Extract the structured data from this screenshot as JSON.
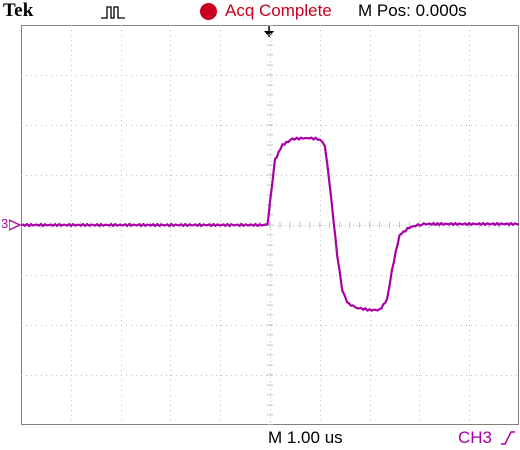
{
  "header": {
    "brand": "Tek",
    "trigger_icon": "pulse-trigger-icon",
    "acq_status": "Acq Complete",
    "acq_color": "#c8001e",
    "m_pos": "M Pos: 0.000s"
  },
  "footer": {
    "timebase": "M 1.00 us",
    "trigger_source": "CH3",
    "trigger_slope_icon": "rising-edge-icon"
  },
  "channel": {
    "marker_label": "3",
    "trace_color": "#a800a8"
  },
  "graticule": {
    "divisions_x": 10,
    "divisions_y": 8,
    "grid_color": "#c0c0c0"
  },
  "chart_data": {
    "type": "line",
    "xlabel": "",
    "ylabel": "",
    "xlim": [
      -5,
      5
    ],
    "ylim": [
      -4,
      4
    ],
    "grid": true,
    "series": [
      {
        "x": [
          -5.0,
          -0.05,
          0.0,
          0.1,
          0.25,
          0.45,
          0.75,
          1.0,
          1.1,
          1.2,
          1.35,
          1.45,
          1.55,
          1.7,
          2.0,
          2.2,
          2.35,
          2.45,
          2.6,
          2.8,
          3.05,
          3.4,
          5.0
        ],
        "values": [
          0.0,
          0.0,
          0.45,
          1.3,
          1.6,
          1.72,
          1.74,
          1.72,
          1.6,
          0.8,
          -0.6,
          -1.3,
          -1.55,
          -1.65,
          -1.7,
          -1.7,
          -1.5,
          -0.9,
          -0.2,
          -0.05,
          0.02,
          0.02,
          0.02
        ]
      }
    ]
  }
}
